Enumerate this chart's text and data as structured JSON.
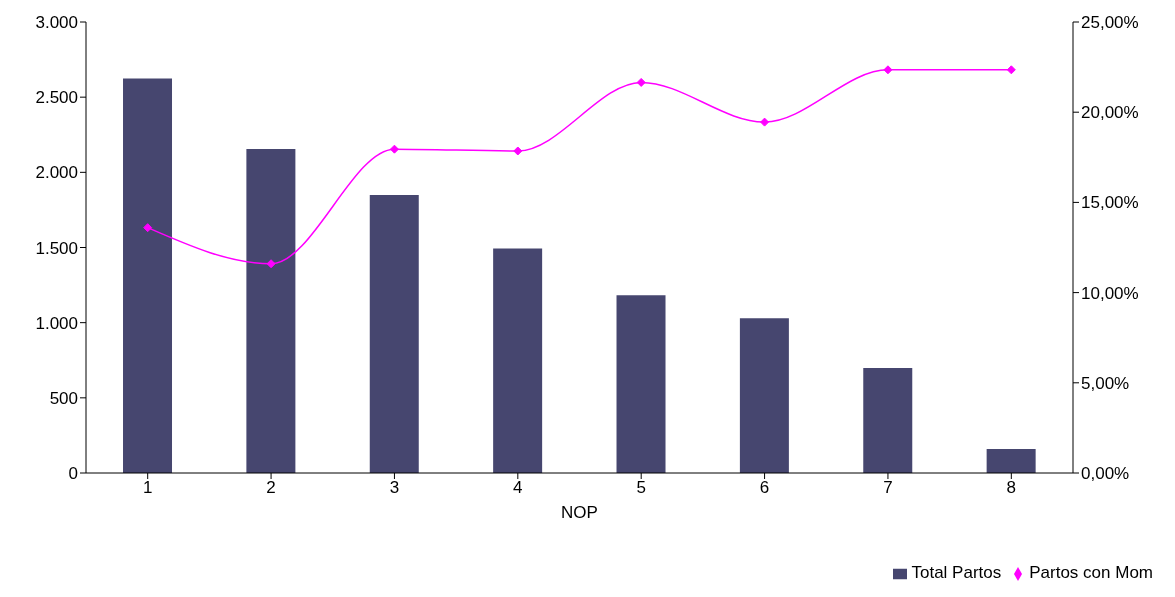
{
  "chart_data": {
    "type": "bar",
    "xlabel": "NOP",
    "categories": [
      "1",
      "2",
      "3",
      "4",
      "5",
      "6",
      "7",
      "8"
    ],
    "series": [
      {
        "name": "Total Partos",
        "color": "#46466f",
        "values": [
          2625,
          2155,
          1850,
          1494,
          1182,
          1030,
          699,
          159
        ]
      },
      {
        "name": "Partos con Mom",
        "type": "line",
        "axis": "y2",
        "color": "#ff00ff",
        "marker": "diamond",
        "values": [
          13.6,
          11.6,
          17.95,
          17.85,
          21.65,
          19.45,
          22.35,
          22.35
        ]
      }
    ],
    "ylim": [
      0,
      3000
    ],
    "yticks": [
      {
        "value": 0,
        "label": "0"
      },
      {
        "value": 500,
        "label": "500"
      },
      {
        "value": 1000,
        "label": "1.000"
      },
      {
        "value": 1500,
        "label": "1.500"
      },
      {
        "value": 2000,
        "label": "2.000"
      },
      {
        "value": 2500,
        "label": "2.500"
      },
      {
        "value": 3000,
        "label": "3.000"
      }
    ],
    "y2lim": [
      0,
      25
    ],
    "y2ticks": [
      {
        "value": 0,
        "label": "0,00%"
      },
      {
        "value": 5,
        "label": "5,00%"
      },
      {
        "value": 10,
        "label": "10,00%"
      },
      {
        "value": 15,
        "label": "15,00%"
      },
      {
        "value": 20,
        "label": "20,00%"
      },
      {
        "value": 25,
        "label": "25,00%"
      }
    ],
    "grid": false,
    "legend": "bottom right"
  }
}
